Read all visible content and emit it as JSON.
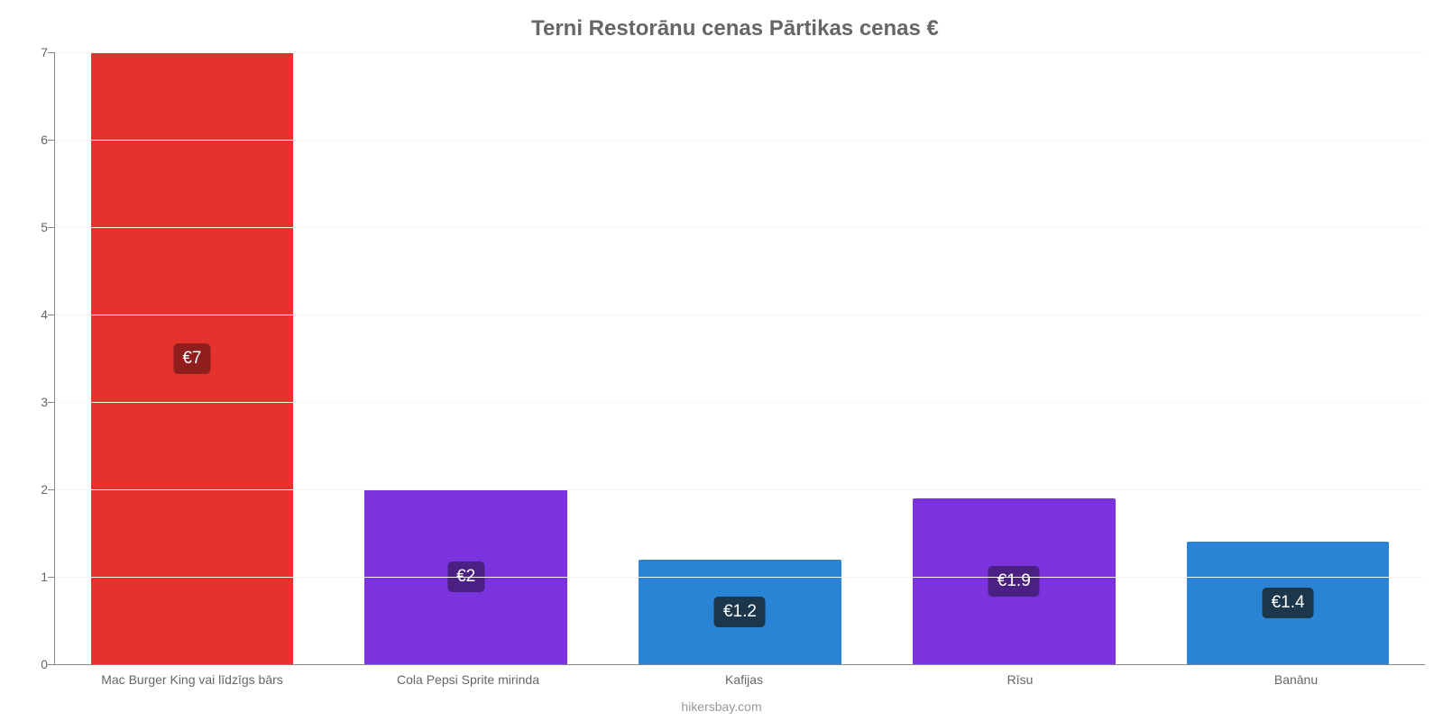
{
  "chart": {
    "type": "bar",
    "title": "Terni Restorānu cenas Pārtikas cenas €",
    "title_color": "#666666",
    "title_fontsize": 24,
    "background_color": "#ffffff",
    "axis_color": "#888888",
    "grid_color": "#f5f5f5",
    "tick_label_color": "#666666",
    "tick_fontsize": 14,
    "y": {
      "min": 0,
      "max": 7,
      "ticks": [
        0,
        1,
        2,
        3,
        4,
        5,
        6,
        7
      ]
    },
    "bar_width_pct": 74,
    "value_label_fontsize": 19,
    "value_label_text_color": "#ffffff",
    "value_label_radius": 5,
    "bars": [
      {
        "category": "Mac Burger King vai līdzīgs bārs",
        "value": 7.0,
        "label": "€7",
        "color": "#e5322d",
        "label_bg": "#901e1d"
      },
      {
        "category": "Cola Pepsi Sprite mirinda",
        "value": 2.0,
        "label": "€2",
        "color": "#7b33de",
        "label_bg": "#4b2083"
      },
      {
        "category": "Kafijas",
        "value": 1.2,
        "label": "€1.2",
        "color": "#2a84d5",
        "label_bg": "#1c374c"
      },
      {
        "category": "Rīsu",
        "value": 1.9,
        "label": "€1.9",
        "color": "#7b33de",
        "label_bg": "#4b2083"
      },
      {
        "category": "Banānu",
        "value": 1.4,
        "label": "€1.4",
        "color": "#2a84d5",
        "label_bg": "#1c374c"
      }
    ],
    "footer": "hikersbay.com",
    "footer_color": "#999999",
    "footer_fontsize": 14
  }
}
